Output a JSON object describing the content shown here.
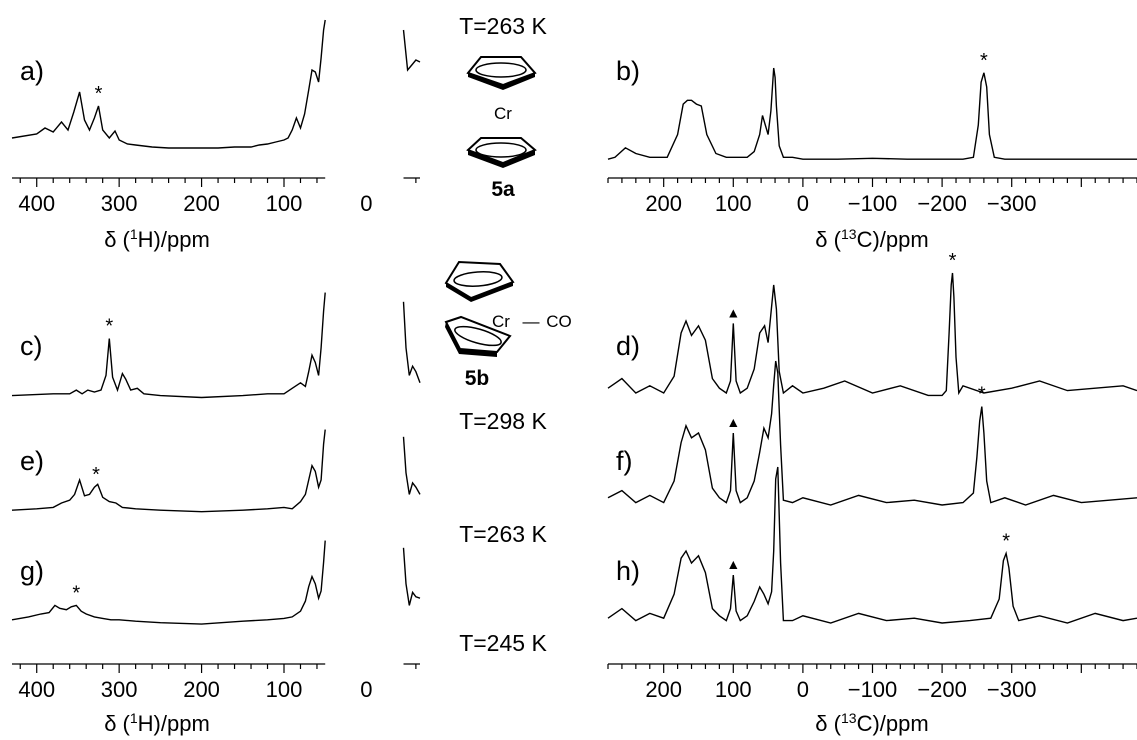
{
  "chart_data": [
    {
      "type": "line",
      "panel_label": "a)",
      "nucleus": "1H",
      "xlabel": "δ (1H)/ppm",
      "x_reversed": true,
      "xlim": [
        430,
        -65
      ],
      "x_ticks": [
        "400",
        "300",
        "200",
        "100",
        "0"
      ],
      "axis_break": [
        50,
        -45
      ],
      "peak_marker": {
        "symbol": "*",
        "x": 325
      },
      "series": [
        {
          "x": [
            430,
            400,
            390,
            380,
            370,
            362,
            355,
            348,
            342,
            336,
            330,
            325,
            320,
            312,
            305,
            300,
            290,
            280,
            260,
            240,
            220,
            200,
            180,
            160,
            140,
            130,
            120,
            110,
            100,
            95,
            90,
            85,
            80,
            75,
            70,
            66,
            62,
            58,
            55,
            52,
            50,
            -45,
            -50,
            -55,
            -60,
            -65
          ],
          "y": [
            0.12,
            0.16,
            0.22,
            0.18,
            0.28,
            0.2,
            0.38,
            0.58,
            0.3,
            0.2,
            0.32,
            0.44,
            0.2,
            0.12,
            0.19,
            0.1,
            0.06,
            0.05,
            0.03,
            0.02,
            0.02,
            0.02,
            0.02,
            0.03,
            0.03,
            0.05,
            0.06,
            0.08,
            0.1,
            0.12,
            0.2,
            0.32,
            0.22,
            0.36,
            0.6,
            0.8,
            0.78,
            0.68,
            0.92,
            1.2,
            1.3,
            1.2,
            0.8,
            0.85,
            0.9,
            0.88
          ]
        }
      ]
    },
    {
      "type": "line",
      "panel_label": "b)",
      "nucleus": "13C",
      "xlabel": "δ (13C)/ppm",
      "x_reversed": true,
      "xlim": [
        280,
        -480
      ],
      "x_ticks": [
        "200",
        "100",
        "0",
        "−100",
        "−200",
        "−300"
      ],
      "peak_marker": {
        "symbol": "*",
        "x": -260
      },
      "series": [
        {
          "x": [
            280,
            270,
            255,
            240,
            220,
            195,
            180,
            172,
            166,
            160,
            153,
            146,
            138,
            125,
            110,
            95,
            80,
            70,
            62,
            58,
            54,
            50,
            46,
            42,
            40,
            38,
            34,
            28,
            15,
            0,
            -50,
            -100,
            -150,
            -200,
            -230,
            -245,
            -252,
            -256,
            -260,
            -264,
            -268,
            -275,
            -290,
            -320,
            -360,
            -400,
            -440,
            -480
          ],
          "y": [
            0.04,
            0.06,
            0.16,
            0.1,
            0.06,
            0.06,
            0.3,
            0.62,
            0.66,
            0.66,
            0.62,
            0.6,
            0.3,
            0.1,
            0.06,
            0.06,
            0.06,
            0.12,
            0.3,
            0.5,
            0.4,
            0.3,
            0.55,
            1.0,
            0.9,
            0.6,
            0.18,
            0.06,
            0.06,
            0.04,
            0.04,
            0.05,
            0.04,
            0.04,
            0.04,
            0.06,
            0.4,
            0.85,
            0.95,
            0.8,
            0.3,
            0.06,
            0.04,
            0.04,
            0.04,
            0.04,
            0.04,
            0.04
          ]
        }
      ]
    },
    {
      "type": "line",
      "panel_label": "c)",
      "nucleus": "1H",
      "xlabel": "",
      "x_reversed": true,
      "xlim": [
        430,
        -65
      ],
      "axis_break": [
        50,
        -45
      ],
      "peak_marker": {
        "symbol": "*",
        "x": 312
      },
      "series": [
        {
          "x": [
            430,
            380,
            360,
            352,
            345,
            338,
            330,
            322,
            316,
            312,
            308,
            302,
            296,
            292,
            286,
            278,
            270,
            250,
            200,
            150,
            120,
            100,
            90,
            80,
            74,
            70,
            66,
            62,
            58,
            55,
            52,
            50,
            -45,
            -48,
            -52,
            -56,
            -60,
            -65
          ],
          "y": [
            0.08,
            0.1,
            0.1,
            0.14,
            0.1,
            0.14,
            0.12,
            0.14,
            0.3,
            0.7,
            0.28,
            0.14,
            0.32,
            0.26,
            0.14,
            0.16,
            0.1,
            0.08,
            0.06,
            0.08,
            0.1,
            0.1,
            0.16,
            0.22,
            0.18,
            0.34,
            0.52,
            0.44,
            0.3,
            0.6,
            1.0,
            1.2,
            1.1,
            0.6,
            0.3,
            0.4,
            0.34,
            0.22
          ]
        }
      ]
    },
    {
      "type": "line",
      "panel_label": "d)",
      "nucleus": "13C",
      "xlabel": "",
      "x_reversed": true,
      "xlim": [
        280,
        -480
      ],
      "peak_marker": {
        "symbol": "*",
        "x": -215
      },
      "triangle_marker": {
        "symbol": "▲",
        "x": 100
      },
      "series": [
        {
          "x": [
            280,
            260,
            240,
            220,
            200,
            185,
            175,
            168,
            160,
            150,
            140,
            130,
            120,
            110,
            104,
            100,
            96,
            90,
            80,
            70,
            62,
            55,
            50,
            45,
            42,
            38,
            34,
            28,
            15,
            0,
            -30,
            -60,
            -100,
            -140,
            -180,
            -200,
            -206,
            -210,
            -213,
            -215,
            -217,
            -220,
            -224,
            -230,
            -260,
            -300,
            -340,
            -380,
            -420,
            -460,
            -480
          ],
          "y": [
            0.14,
            0.22,
            0.1,
            0.16,
            0.1,
            0.24,
            0.6,
            0.7,
            0.58,
            0.66,
            0.54,
            0.22,
            0.14,
            0.1,
            0.2,
            0.68,
            0.2,
            0.1,
            0.14,
            0.3,
            0.6,
            0.66,
            0.52,
            0.82,
            1.0,
            0.8,
            0.28,
            0.1,
            0.16,
            0.1,
            0.14,
            0.2,
            0.1,
            0.16,
            0.08,
            0.08,
            0.12,
            0.6,
            1.0,
            1.1,
            0.9,
            0.4,
            0.1,
            0.16,
            0.1,
            0.14,
            0.2,
            0.12,
            0.14,
            0.16,
            0.12
          ]
        }
      ]
    },
    {
      "type": "line",
      "panel_label": "e)",
      "nucleus": "1H",
      "xlabel": "",
      "x_reversed": true,
      "xlim": [
        430,
        -65
      ],
      "axis_break": [
        50,
        -45
      ],
      "peak_marker": {
        "symbol": "*",
        "x": 328
      },
      "series": [
        {
          "x": [
            430,
            400,
            380,
            370,
            360,
            354,
            348,
            342,
            336,
            330,
            326,
            320,
            312,
            304,
            296,
            280,
            250,
            200,
            150,
            120,
            100,
            90,
            80,
            74,
            70,
            66,
            62,
            58,
            55,
            52,
            50,
            -45,
            -48,
            -52,
            -56,
            -60,
            -65
          ],
          "y": [
            0.08,
            0.1,
            0.12,
            0.18,
            0.22,
            0.3,
            0.5,
            0.28,
            0.3,
            0.4,
            0.44,
            0.26,
            0.2,
            0.18,
            0.12,
            0.1,
            0.08,
            0.06,
            0.08,
            0.1,
            0.12,
            0.1,
            0.2,
            0.3,
            0.5,
            0.7,
            0.62,
            0.4,
            0.5,
            1.0,
            1.2,
            1.1,
            0.6,
            0.3,
            0.46,
            0.4,
            0.3
          ]
        }
      ]
    },
    {
      "type": "line",
      "panel_label": "f)",
      "nucleus": "13C",
      "xlabel": "",
      "x_reversed": true,
      "xlim": [
        280,
        -480
      ],
      "peak_marker": {
        "symbol": "*",
        "x": -257
      },
      "triangle_marker": {
        "symbol": "▲",
        "x": 100
      },
      "series": [
        {
          "x": [
            280,
            260,
            240,
            220,
            200,
            185,
            175,
            168,
            160,
            150,
            140,
            130,
            120,
            110,
            104,
            100,
            96,
            90,
            80,
            70,
            62,
            56,
            50,
            45,
            42,
            39,
            36,
            32,
            28,
            15,
            0,
            -40,
            -80,
            -120,
            -160,
            -200,
            -230,
            -245,
            -250,
            -254,
            -257,
            -260,
            -264,
            -270,
            -290,
            -320,
            -360,
            -400,
            -440,
            -480
          ],
          "y": [
            0.16,
            0.22,
            0.12,
            0.18,
            0.12,
            0.3,
            0.62,
            0.76,
            0.66,
            0.7,
            0.56,
            0.24,
            0.16,
            0.12,
            0.22,
            0.7,
            0.22,
            0.12,
            0.16,
            0.3,
            0.54,
            0.74,
            0.66,
            0.86,
            1.1,
            1.3,
            1.2,
            0.6,
            0.14,
            0.12,
            0.16,
            0.1,
            0.18,
            0.12,
            0.14,
            0.1,
            0.12,
            0.2,
            0.5,
            0.8,
            0.92,
            0.7,
            0.3,
            0.12,
            0.16,
            0.1,
            0.18,
            0.12,
            0.14,
            0.16
          ]
        }
      ]
    },
    {
      "type": "line",
      "panel_label": "g)",
      "nucleus": "1H",
      "xlabel": "δ (1H)/ppm",
      "x_reversed": true,
      "xlim": [
        430,
        -65
      ],
      "x_ticks": [
        "400",
        "300",
        "200",
        "100",
        "0"
      ],
      "axis_break": [
        50,
        -45
      ],
      "peak_marker": {
        "symbol": "*",
        "x": 352
      },
      "series": [
        {
          "x": [
            430,
            410,
            395,
            385,
            378,
            372,
            364,
            358,
            352,
            346,
            340,
            330,
            320,
            310,
            300,
            280,
            250,
            200,
            150,
            120,
            100,
            90,
            80,
            74,
            70,
            66,
            62,
            58,
            55,
            52,
            50,
            -45,
            -48,
            -52,
            -56,
            -60,
            -65
          ],
          "y": [
            0.1,
            0.14,
            0.18,
            0.2,
            0.3,
            0.26,
            0.24,
            0.28,
            0.3,
            0.22,
            0.18,
            0.14,
            0.12,
            0.1,
            0.1,
            0.08,
            0.06,
            0.04,
            0.08,
            0.1,
            0.12,
            0.14,
            0.22,
            0.36,
            0.56,
            0.7,
            0.6,
            0.4,
            0.5,
            0.9,
            1.2,
            1.1,
            0.6,
            0.3,
            0.48,
            0.42,
            0.4
          ]
        }
      ]
    },
    {
      "type": "line",
      "panel_label": "h)",
      "nucleus": "13C",
      "xlabel": "δ (13C)/ppm",
      "x_reversed": true,
      "xlim": [
        280,
        -480
      ],
      "x_ticks": [
        "200",
        "100",
        "0",
        "−100",
        "−200",
        "−300"
      ],
      "peak_marker": {
        "symbol": "*",
        "x": -292
      },
      "triangle_marker": {
        "symbol": "▲",
        "x": 100
      },
      "series": [
        {
          "x": [
            280,
            260,
            240,
            220,
            200,
            185,
            175,
            168,
            160,
            150,
            140,
            130,
            120,
            110,
            104,
            100,
            96,
            90,
            80,
            70,
            62,
            56,
            50,
            45,
            42,
            39,
            36,
            32,
            28,
            15,
            0,
            -40,
            -80,
            -120,
            -160,
            -200,
            -240,
            -270,
            -282,
            -288,
            -292,
            -296,
            -302,
            -310,
            -340,
            -380,
            -420,
            -460,
            -480
          ],
          "y": [
            0.14,
            0.22,
            0.12,
            0.18,
            0.14,
            0.34,
            0.64,
            0.7,
            0.6,
            0.66,
            0.52,
            0.22,
            0.16,
            0.12,
            0.22,
            0.5,
            0.2,
            0.12,
            0.16,
            0.28,
            0.4,
            0.34,
            0.26,
            0.36,
            0.7,
            1.3,
            1.4,
            0.6,
            0.12,
            0.12,
            0.16,
            0.1,
            0.18,
            0.12,
            0.14,
            0.1,
            0.12,
            0.14,
            0.3,
            0.62,
            0.68,
            0.56,
            0.24,
            0.12,
            0.16,
            0.1,
            0.18,
            0.12,
            0.14
          ]
        }
      ]
    }
  ],
  "axis_labels": {
    "h_prefix": "δ (",
    "h_sup": "1",
    "h_suffix": "H)/ppm",
    "c_prefix": "δ (",
    "c_sup": "13",
    "c_suffix": "C)/ppm"
  },
  "structures": {
    "temp_top": "T=263 K",
    "compound_a": {
      "metal_label": "Cr",
      "name": "5a"
    },
    "compound_b": {
      "metal_label": "Cr",
      "ligand": "CO",
      "dash": "—",
      "name": "5b"
    }
  },
  "temperatures": [
    "T=298 K",
    "T=263 K",
    "T=245 K"
  ]
}
